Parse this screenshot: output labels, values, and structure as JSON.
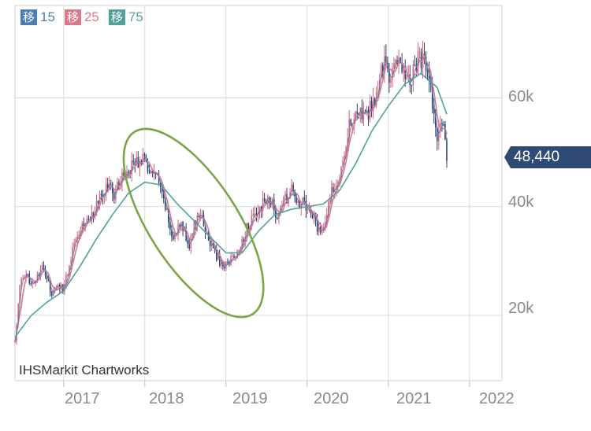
{
  "chart_data": {
    "type": "candlestick",
    "watermark": "IHSMarkit Chartworks",
    "legend": [
      {
        "tag": "移",
        "period": "15",
        "color": "#4a7fb6"
      },
      {
        "tag": "移",
        "period": "25",
        "color": "#d97a8c"
      },
      {
        "tag": "移",
        "period": "75",
        "color": "#4fa39a"
      }
    ],
    "y_ticks": [
      {
        "value": 20000,
        "label": "20k"
      },
      {
        "value": 40000,
        "label": "40k"
      },
      {
        "value": 60000,
        "label": "60k"
      }
    ],
    "x_ticks": [
      "2017",
      "2018",
      "2019",
      "2020",
      "2021",
      "2022"
    ],
    "last_price": {
      "value": 48440,
      "label": "48,440"
    },
    "xlim": [
      2016.4,
      2022.4
    ],
    "ylim": [
      8000,
      77000
    ],
    "price_path": [
      [
        2016.4,
        15000
      ],
      [
        2016.46,
        26000
      ],
      [
        2016.55,
        27000
      ],
      [
        2016.65,
        26000
      ],
      [
        2016.75,
        29000
      ],
      [
        2016.85,
        24000
      ],
      [
        2016.95,
        25500
      ],
      [
        2017.0,
        25000
      ],
      [
        2017.08,
        30000
      ],
      [
        2017.15,
        35000
      ],
      [
        2017.25,
        37000
      ],
      [
        2017.35,
        38500
      ],
      [
        2017.45,
        41500
      ],
      [
        2017.55,
        44000
      ],
      [
        2017.62,
        42500
      ],
      [
        2017.7,
        45000
      ],
      [
        2017.8,
        47000
      ],
      [
        2017.88,
        48000
      ],
      [
        2017.95,
        49000
      ],
      [
        2018.05,
        47000
      ],
      [
        2018.15,
        45000
      ],
      [
        2018.25,
        40000
      ],
      [
        2018.35,
        34000
      ],
      [
        2018.45,
        37000
      ],
      [
        2018.55,
        33000
      ],
      [
        2018.65,
        39000
      ],
      [
        2018.72,
        37000
      ],
      [
        2018.78,
        34000
      ],
      [
        2018.85,
        32000
      ],
      [
        2018.95,
        29000
      ],
      [
        2019.05,
        30000
      ],
      [
        2019.15,
        31500
      ],
      [
        2019.25,
        36000
      ],
      [
        2019.35,
        38000
      ],
      [
        2019.45,
        40500
      ],
      [
        2019.55,
        41000
      ],
      [
        2019.62,
        38500
      ],
      [
        2019.7,
        40500
      ],
      [
        2019.8,
        43000
      ],
      [
        2019.88,
        41000
      ],
      [
        2019.95,
        40500
      ],
      [
        2020.08,
        38000
      ],
      [
        2020.15,
        35000
      ],
      [
        2020.22,
        37000
      ],
      [
        2020.3,
        43000
      ],
      [
        2020.4,
        46000
      ],
      [
        2020.5,
        54000
      ],
      [
        2020.6,
        58000
      ],
      [
        2020.7,
        56000
      ],
      [
        2020.78,
        58000
      ],
      [
        2020.88,
        62000
      ],
      [
        2020.95,
        67000
      ],
      [
        2021.02,
        64000
      ],
      [
        2021.1,
        66000
      ],
      [
        2021.18,
        65500
      ],
      [
        2021.28,
        64000
      ],
      [
        2021.38,
        67500
      ],
      [
        2021.45,
        66000
      ],
      [
        2021.5,
        64000
      ],
      [
        2021.55,
        57000
      ],
      [
        2021.6,
        53000
      ],
      [
        2021.65,
        54500
      ],
      [
        2021.7,
        53000
      ],
      [
        2021.72,
        48440
      ]
    ],
    "ma_75_path": [
      [
        2016.4,
        16000
      ],
      [
        2016.6,
        20000
      ],
      [
        2016.8,
        22500
      ],
      [
        2017.0,
        24500
      ],
      [
        2017.2,
        29000
      ],
      [
        2017.4,
        34000
      ],
      [
        2017.6,
        38500
      ],
      [
        2017.8,
        42500
      ],
      [
        2018.0,
        44500
      ],
      [
        2018.2,
        44000
      ],
      [
        2018.4,
        40500
      ],
      [
        2018.6,
        37500
      ],
      [
        2018.8,
        34500
      ],
      [
        2019.0,
        31500
      ],
      [
        2019.2,
        31500
      ],
      [
        2019.4,
        35500
      ],
      [
        2019.6,
        38500
      ],
      [
        2019.8,
        39500
      ],
      [
        2020.0,
        40000
      ],
      [
        2020.2,
        40500
      ],
      [
        2020.4,
        43000
      ],
      [
        2020.6,
        48000
      ],
      [
        2020.8,
        54000
      ],
      [
        2021.0,
        58500
      ],
      [
        2021.2,
        62500
      ],
      [
        2021.4,
        64500
      ],
      [
        2021.6,
        62000
      ],
      [
        2021.72,
        57000
      ]
    ],
    "highlight_ellipse": {
      "x_from": 2017.85,
      "x_to": 2019.35,
      "y_from": 22000,
      "y_to": 52000,
      "rotation_deg": -33
    }
  }
}
